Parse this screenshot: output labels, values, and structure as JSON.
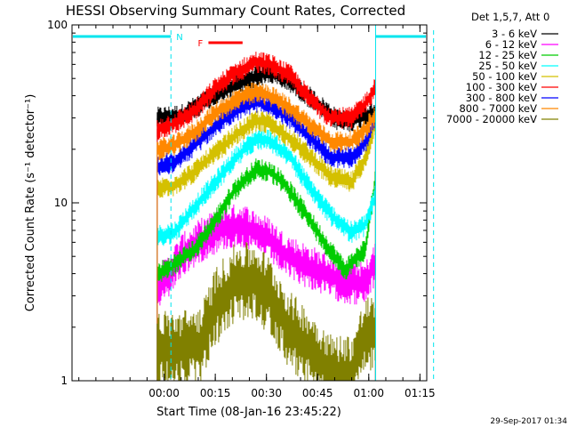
{
  "chart_data": {
    "type": "line",
    "title": "HESSI Observing Summary Count Rates, Corrected",
    "xlabel": "Start Time (08-Jan-16 23:45:22)",
    "ylabel": "Corrected Count Rate (s⁻¹ detector⁻¹)",
    "y_scale": "log",
    "ylim": [
      1,
      100
    ],
    "xlim_minutes": [
      -12,
      92
    ],
    "x_ticks": [
      {
        "label": "00:00",
        "min": 15
      },
      {
        "label": "00:15",
        "min": 30
      },
      {
        "label": "00:30",
        "min": 45
      },
      {
        "label": "00:45",
        "min": 60
      },
      {
        "label": "01:00",
        "min": 75
      },
      {
        "label": "01:15",
        "min": 90
      }
    ],
    "y_ticks": [
      {
        "label": "1",
        "value": 1
      },
      {
        "label": "10",
        "value": 10
      },
      {
        "label": "100",
        "value": 100
      }
    ],
    "legend_title": "Det 1,5,7, Att 0",
    "legend_placement": "right",
    "observing_start_min": 13,
    "observing_end_min": 77,
    "night_intervals": [
      {
        "label": "N",
        "start": -12,
        "end": 17
      },
      {
        "label": "",
        "start": 77,
        "end": 94
      }
    ],
    "flare_flag": {
      "label": "F",
      "start": 28,
      "end": 38
    },
    "series": [
      {
        "name": "3 - 6 keV",
        "color": "#000000",
        "values": [
          [
            13,
            30
          ],
          [
            20,
            31
          ],
          [
            30,
            40
          ],
          [
            40,
            50
          ],
          [
            46,
            54
          ],
          [
            52,
            48
          ],
          [
            60,
            36
          ],
          [
            66,
            29
          ],
          [
            70,
            29
          ],
          [
            74,
            31
          ],
          [
            77,
            33
          ]
        ]
      },
      {
        "name": "6 - 12 keV",
        "color": "#ff00ff",
        "values": [
          [
            13,
            3.3
          ],
          [
            16,
            3.8
          ],
          [
            20,
            5.0
          ],
          [
            26,
            6.2
          ],
          [
            32,
            7.2
          ],
          [
            38,
            7.5
          ],
          [
            42,
            6.8
          ],
          [
            46,
            6.2
          ],
          [
            50,
            5.2
          ],
          [
            56,
            4.5
          ],
          [
            62,
            4.0
          ],
          [
            68,
            3.6
          ],
          [
            74,
            3.5
          ],
          [
            77,
            4.6
          ]
        ]
      },
      {
        "name": "12 - 25 keV",
        "color": "#00cc00",
        "values": [
          [
            13,
            4.0
          ],
          [
            18,
            4.5
          ],
          [
            24,
            5.5
          ],
          [
            30,
            8.0
          ],
          [
            36,
            12
          ],
          [
            42,
            15.5
          ],
          [
            46,
            15
          ],
          [
            50,
            13
          ],
          [
            56,
            9.0
          ],
          [
            62,
            6.0
          ],
          [
            68,
            4.2
          ],
          [
            74,
            5.5
          ],
          [
            77,
            14
          ]
        ]
      },
      {
        "name": "25 - 50 keV",
        "color": "#00ffff",
        "values": [
          [
            13,
            6.5
          ],
          [
            18,
            6.8
          ],
          [
            24,
            9.5
          ],
          [
            30,
            13
          ],
          [
            36,
            18
          ],
          [
            42,
            23
          ],
          [
            46,
            22.5
          ],
          [
            52,
            18
          ],
          [
            58,
            12
          ],
          [
            64,
            8.5
          ],
          [
            70,
            6.8
          ],
          [
            74,
            7.5
          ],
          [
            77,
            11
          ]
        ]
      },
      {
        "name": "50 - 100 keV",
        "color": "#d4c000",
        "values": [
          [
            13,
            12
          ],
          [
            18,
            12.5
          ],
          [
            24,
            15
          ],
          [
            30,
            19
          ],
          [
            36,
            24
          ],
          [
            42,
            29
          ],
          [
            46,
            28
          ],
          [
            52,
            23
          ],
          [
            58,
            18
          ],
          [
            64,
            14
          ],
          [
            70,
            13
          ],
          [
            74,
            18
          ],
          [
            77,
            28
          ]
        ]
      },
      {
        "name": "100 - 300 keV",
        "color": "#ff0000",
        "values": [
          [
            13,
            26
          ],
          [
            18,
            28
          ],
          [
            24,
            33
          ],
          [
            30,
            44
          ],
          [
            36,
            54
          ],
          [
            42,
            62
          ],
          [
            46,
            60
          ],
          [
            52,
            52
          ],
          [
            58,
            38
          ],
          [
            64,
            30
          ],
          [
            70,
            30
          ],
          [
            74,
            36
          ],
          [
            77,
            45
          ]
        ]
      },
      {
        "name": "300 - 800 keV",
        "color": "#0000ff",
        "values": [
          [
            13,
            16
          ],
          [
            18,
            17
          ],
          [
            24,
            21
          ],
          [
            30,
            27
          ],
          [
            36,
            33
          ],
          [
            42,
            37
          ],
          [
            46,
            35
          ],
          [
            52,
            30
          ],
          [
            58,
            23
          ],
          [
            64,
            18
          ],
          [
            70,
            18
          ],
          [
            74,
            22
          ],
          [
            77,
            29
          ]
        ]
      },
      {
        "name": "800 - 7000 keV",
        "color": "#ff8800",
        "values": [
          [
            13,
            20
          ],
          [
            18,
            21
          ],
          [
            24,
            25
          ],
          [
            30,
            32
          ],
          [
            36,
            38
          ],
          [
            42,
            42
          ],
          [
            46,
            40
          ],
          [
            52,
            34
          ],
          [
            58,
            27
          ],
          [
            64,
            22
          ],
          [
            70,
            22
          ],
          [
            74,
            26
          ],
          [
            77,
            31
          ]
        ]
      },
      {
        "name": "7000 - 20000 keV",
        "color": "#808000",
        "values": [
          [
            14,
            1.5
          ],
          [
            20,
            1.5
          ],
          [
            26,
            1.6
          ],
          [
            30,
            2.6
          ],
          [
            36,
            3.6
          ],
          [
            42,
            3.6
          ],
          [
            46,
            3.0
          ],
          [
            52,
            1.9
          ],
          [
            58,
            1.5
          ],
          [
            64,
            1.1
          ],
          [
            70,
            1.1
          ],
          [
            74,
            1.8
          ],
          [
            77,
            1.8
          ]
        ]
      }
    ]
  },
  "footer_date": "29-Sep-2017 01:34"
}
